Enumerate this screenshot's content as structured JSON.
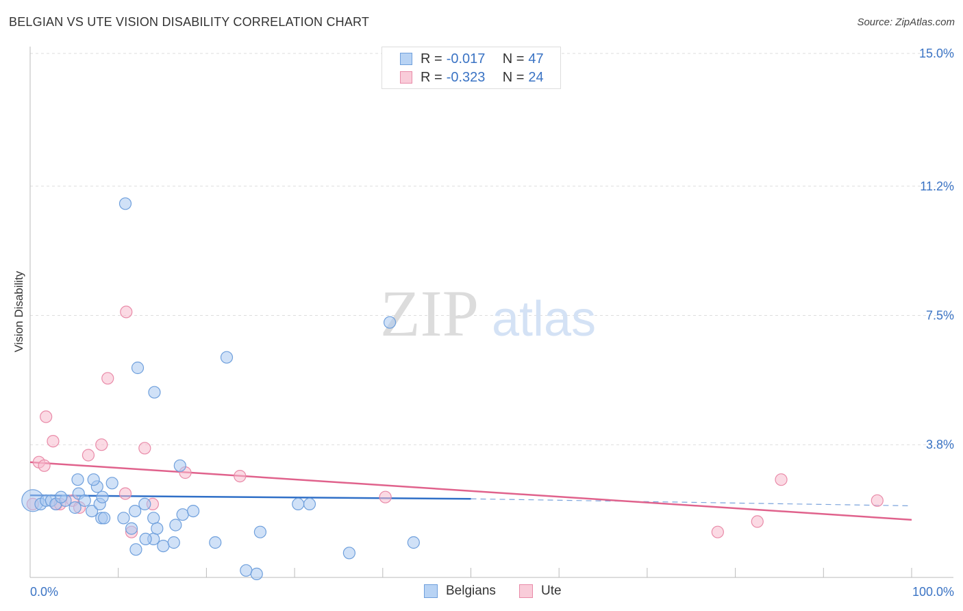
{
  "title": "BELGIAN VS UTE VISION DISABILITY CORRELATION CHART",
  "source": "Source: ZipAtlas.com",
  "watermark": {
    "zip": "ZIP",
    "atlas": "atlas"
  },
  "legend": {
    "rows": [
      {
        "r_label": "R =",
        "r_value": "-0.017",
        "n_label": "N =",
        "n_value": "47"
      },
      {
        "r_label": "R =",
        "r_value": "-0.323",
        "n_label": "N =",
        "n_value": "24"
      }
    ]
  },
  "bottom_legend": [
    "Belgians",
    "Ute"
  ],
  "colors": {
    "belgians_fill": "#a9c8f0",
    "belgians_stroke": "#6e9fdc",
    "belgians_line": "#2f6fc7",
    "ute_fill": "#f7bccd",
    "ute_stroke": "#e98aa8",
    "ute_line": "#e0628c",
    "tick_label": "#3a73c4",
    "grid": "#dddddd"
  },
  "chart_data": {
    "type": "scatter",
    "title": "BELGIAN VS UTE VISION DISABILITY CORRELATION CHART",
    "xlabel": "",
    "ylabel": "Vision Disability",
    "xlim": [
      0,
      100
    ],
    "ylim": [
      0,
      15
    ],
    "x_tick_labels": [
      "0.0%",
      "100.0%"
    ],
    "y_ticks": [
      3.8,
      7.5,
      11.2,
      15.0
    ],
    "y_tick_labels": [
      "3.8%",
      "7.5%",
      "11.2%",
      "15.0%"
    ],
    "grid": "horizontal dashed",
    "series": [
      {
        "name": "Belgians",
        "r": -0.017,
        "n": 47,
        "points": [
          [
            0.3,
            2.2,
            "big"
          ],
          [
            1.2,
            2.1
          ],
          [
            1.8,
            2.2
          ],
          [
            2.4,
            2.2
          ],
          [
            2.9,
            2.1
          ],
          [
            4.0,
            2.2
          ],
          [
            5.1,
            2.0
          ],
          [
            3.5,
            2.3
          ],
          [
            5.5,
            2.4
          ],
          [
            6.2,
            2.2
          ],
          [
            7.0,
            1.9
          ],
          [
            7.9,
            2.1
          ],
          [
            8.2,
            2.3
          ],
          [
            5.4,
            2.8
          ],
          [
            7.6,
            2.6
          ],
          [
            8.1,
            1.7
          ],
          [
            7.2,
            2.8
          ],
          [
            9.3,
            2.7
          ],
          [
            8.4,
            1.7
          ],
          [
            10.6,
            1.7
          ],
          [
            11.5,
            1.4
          ],
          [
            12.0,
            0.8
          ],
          [
            11.9,
            1.9
          ],
          [
            13.0,
            2.1
          ],
          [
            14.0,
            1.1
          ],
          [
            14.0,
            1.7
          ],
          [
            14.4,
            1.4
          ],
          [
            13.1,
            1.1
          ],
          [
            15.1,
            0.9
          ],
          [
            16.3,
            1.0
          ],
          [
            16.5,
            1.5
          ],
          [
            17.3,
            1.8
          ],
          [
            18.5,
            1.9
          ],
          [
            14.1,
            5.3
          ],
          [
            12.2,
            6.0
          ],
          [
            10.8,
            10.7
          ],
          [
            22.3,
            6.3
          ],
          [
            24.5,
            0.2
          ],
          [
            25.7,
            0.1
          ],
          [
            30.4,
            2.1
          ],
          [
            31.7,
            2.1
          ],
          [
            26.1,
            1.3
          ],
          [
            36.2,
            0.7
          ],
          [
            40.8,
            7.3
          ],
          [
            43.5,
            1.0
          ],
          [
            17.0,
            3.2
          ],
          [
            21.0,
            1.0
          ]
        ]
      },
      {
        "name": "Ute",
        "r": -0.323,
        "n": 24,
        "points": [
          [
            0.3,
            2.1
          ],
          [
            1.0,
            3.3
          ],
          [
            1.6,
            3.2
          ],
          [
            1.8,
            4.6
          ],
          [
            2.6,
            3.9
          ],
          [
            3.0,
            2.1
          ],
          [
            3.4,
            2.1
          ],
          [
            4.8,
            2.2
          ],
          [
            5.6,
            2.0
          ],
          [
            6.6,
            3.5
          ],
          [
            8.1,
            3.8
          ],
          [
            8.8,
            5.7
          ],
          [
            10.8,
            2.4
          ],
          [
            10.9,
            7.6
          ],
          [
            11.5,
            1.3
          ],
          [
            13.0,
            3.7
          ],
          [
            13.9,
            2.1
          ],
          [
            17.6,
            3.0
          ],
          [
            23.8,
            2.9
          ],
          [
            40.3,
            2.3
          ],
          [
            78.0,
            1.3
          ],
          [
            82.5,
            1.6
          ],
          [
            85.2,
            2.8
          ],
          [
            96.1,
            2.2
          ]
        ]
      }
    ],
    "trendlines": [
      {
        "series": "Belgians",
        "x_start": 0,
        "y_start": 2.35,
        "x_solid_end": 50,
        "y_solid_end": 2.25,
        "x_end": 100,
        "y_end": 2.05
      },
      {
        "series": "Ute",
        "x_start": 0,
        "y_start": 3.3,
        "x_end": 100,
        "y_end": 1.65
      }
    ]
  }
}
